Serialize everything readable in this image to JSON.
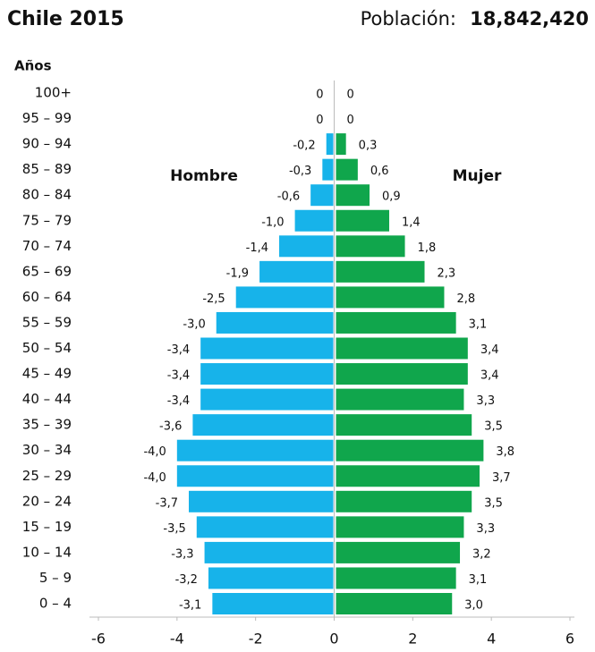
{
  "chart_data": {
    "type": "pyramid",
    "title": "Chile 2015",
    "population_label": "Población:",
    "population": "18,842,420",
    "y_axis_label": "Años",
    "categories": [
      "100+",
      "95 – 99",
      "90 – 94",
      "85 – 89",
      "80 – 84",
      "75 – 79",
      "70 – 74",
      "65 – 69",
      "60 – 64",
      "55 – 59",
      "50 – 54",
      "45 – 49",
      "40 – 44",
      "35 – 39",
      "30 – 34",
      "25 – 29",
      "20 – 24",
      "15 – 19",
      "10 – 14",
      "5 – 9",
      "0 – 4"
    ],
    "series": [
      {
        "name": "Hombre",
        "color": "#17b3ea",
        "values": [
          0,
          0,
          -0.2,
          -0.3,
          -0.6,
          -1.0,
          -1.4,
          -1.9,
          -2.5,
          -3.0,
          -3.4,
          -3.4,
          -3.4,
          -3.6,
          -4.0,
          -4.0,
          -3.7,
          -3.5,
          -3.3,
          -3.2,
          -3.1
        ],
        "value_labels": [
          "0",
          "0",
          "-0,2",
          "-0,3",
          "-0,6",
          "-1,0",
          "-1,4",
          "-1,9",
          "-2,5",
          "-3,0",
          "-3,4",
          "-3,4",
          "-3,4",
          "-3,6",
          "-4,0",
          "-4,0",
          "-3,7",
          "-3,5",
          "-3,3",
          "-3,2",
          "-3,1"
        ]
      },
      {
        "name": "Mujer",
        "color": "#10a64c",
        "values": [
          0,
          0,
          0.3,
          0.6,
          0.9,
          1.4,
          1.8,
          2.3,
          2.8,
          3.1,
          3.4,
          3.4,
          3.3,
          3.5,
          3.8,
          3.7,
          3.5,
          3.3,
          3.2,
          3.1,
          3.0
        ],
        "value_labels": [
          "0",
          "0",
          "0,3",
          "0,6",
          "0,9",
          "1,4",
          "1,8",
          "2,3",
          "2,8",
          "3,1",
          "3,4",
          "3,4",
          "3,3",
          "3,5",
          "3,8",
          "3,7",
          "3,5",
          "3,3",
          "3,2",
          "3,1",
          "3,0"
        ]
      }
    ],
    "xlim": [
      -6,
      6
    ],
    "xticks": [
      -6,
      -4,
      -2,
      0,
      2,
      4,
      6
    ]
  }
}
